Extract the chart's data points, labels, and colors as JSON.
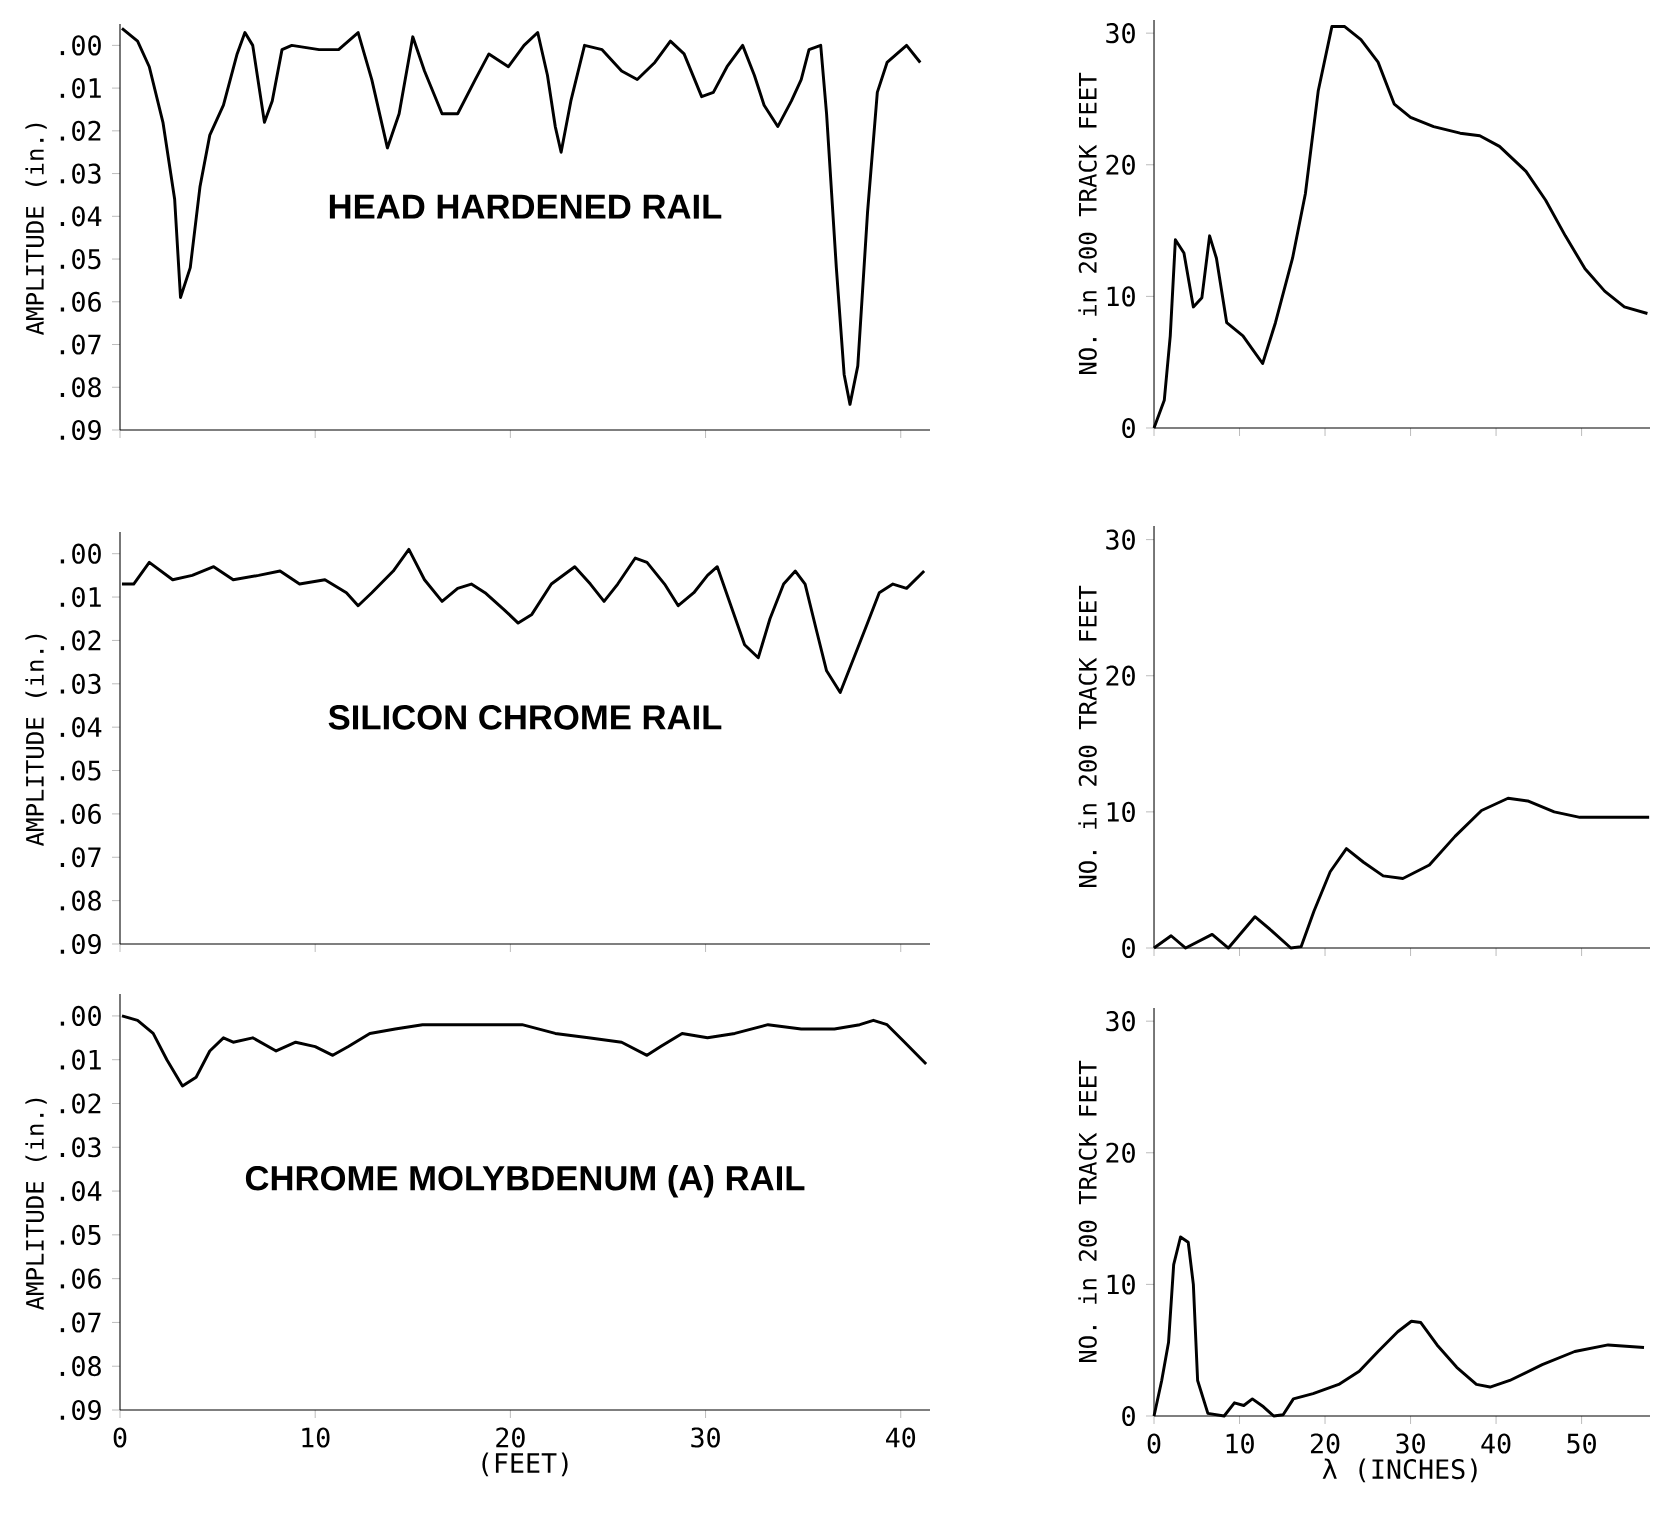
{
  "chart_data": [
    {
      "type": "line",
      "annotations": [
        "HEAD HARDENED RAIL"
      ],
      "ylabel": "AMPLITUDE (in.)",
      "color": "#000000",
      "tick_labels": "y",
      "xlim": [
        0,
        41.5
      ],
      "ylim": [
        0.09,
        -0.005
      ],
      "xticks": [
        {
          "value": 0,
          "label": null
        },
        {
          "value": 10,
          "label": null
        },
        {
          "value": 20,
          "label": null
        },
        {
          "value": 30,
          "label": null
        },
        {
          "value": 40,
          "label": null
        }
      ],
      "yticks": [
        {
          "value": 0,
          "label": ".00"
        },
        {
          "value": 0.01,
          "label": ".01"
        },
        {
          "value": 0.02,
          "label": ".02"
        },
        {
          "value": 0.03,
          "label": ".03"
        },
        {
          "value": 0.04,
          "label": ".04"
        },
        {
          "value": 0.05,
          "label": ".05"
        },
        {
          "value": 0.06,
          "label": ".06"
        },
        {
          "value": 0.07,
          "label": ".07"
        },
        {
          "value": 0.08,
          "label": ".08"
        },
        {
          "value": 0.09,
          "label": ".09"
        }
      ],
      "x": [
        0.1,
        0.9,
        1.5,
        2.2,
        2.8,
        3.1,
        3.6,
        4.1,
        4.6,
        5.3,
        6.0,
        6.4,
        6.8,
        7.4,
        7.8,
        8.3,
        8.8,
        10.2,
        11.2,
        12.2,
        12.9,
        13.7,
        14.3,
        15.0,
        15.6,
        16.5,
        17.3,
        18.2,
        18.9,
        19.9,
        20.7,
        21.4,
        21.9,
        22.3,
        22.6,
        23.1,
        23.8,
        24.7,
        25.7,
        26.5,
        27.4,
        28.2,
        28.9,
        29.8,
        30.4,
        31.1,
        31.9,
        32.5,
        33.0,
        33.7,
        34.4,
        34.9,
        35.3,
        35.9,
        36.2,
        36.7,
        37.1,
        37.4,
        37.8,
        38.3,
        38.8,
        39.3,
        39.8,
        40.3,
        41.0
      ],
      "values": [
        -0.004,
        -0.001,
        0.005,
        0.018,
        0.036,
        0.059,
        0.052,
        0.033,
        0.021,
        0.014,
        0.002,
        -0.003,
        0.0,
        0.018,
        0.013,
        0.001,
        0.0,
        0.001,
        0.001,
        -0.003,
        0.008,
        0.024,
        0.016,
        -0.002,
        0.006,
        0.016,
        0.016,
        0.008,
        0.002,
        0.005,
        0.0,
        -0.003,
        0.007,
        0.019,
        0.025,
        0.013,
        0.0,
        0.001,
        0.006,
        0.008,
        0.004,
        -0.001,
        0.002,
        0.012,
        0.011,
        0.005,
        0.0,
        0.007,
        0.014,
        0.019,
        0.013,
        0.008,
        0.001,
        0.0,
        0.016,
        0.052,
        0.077,
        0.084,
        0.075,
        0.039,
        0.011,
        0.004,
        0.002,
        0.0,
        0.004
      ]
    },
    {
      "type": "line",
      "ylabel": "NO. in 200 TRACK FEET",
      "color": "#000000",
      "tick_labels": "y",
      "xlim": [
        0,
        58
      ],
      "ylim": [
        0,
        31
      ],
      "xticks": [
        {
          "value": 0,
          "label": null
        },
        {
          "value": 10,
          "label": null
        },
        {
          "value": 20,
          "label": null
        },
        {
          "value": 30,
          "label": null
        },
        {
          "value": 40,
          "label": null
        },
        {
          "value": 50,
          "label": null
        }
      ],
      "yticks": [
        0,
        10,
        20,
        30
      ],
      "x": [
        0,
        1.2,
        1.9,
        2.5,
        3.5,
        4.6,
        5.6,
        6.5,
        7.3,
        8.5,
        10.4,
        11.5,
        12.7,
        14.2,
        16.2,
        17.7,
        19.2,
        20.8,
        22.3,
        24.2,
        26.2,
        28.1,
        30.0,
        32.7,
        35.8,
        38.1,
        40.4,
        43.5,
        45.8,
        48.1,
        50.4,
        52.7,
        55.0,
        57.7
      ],
      "values": [
        0,
        2.1,
        7.0,
        14.3,
        13.3,
        9.2,
        9.9,
        14.6,
        12.9,
        8.0,
        7.0,
        6.0,
        4.9,
        8.0,
        12.9,
        17.8,
        25.6,
        30.5,
        30.5,
        29.5,
        27.8,
        24.6,
        23.6,
        22.9,
        22.4,
        22.2,
        21.4,
        19.5,
        17.3,
        14.6,
        12.1,
        10.4,
        9.2,
        8.7
      ]
    },
    {
      "type": "line",
      "annotations": [
        "SILICON CHROME RAIL"
      ],
      "ylabel": "AMPLITUDE (in.)",
      "color": "#000000",
      "tick_labels": "y",
      "xlim": [
        0,
        41.5
      ],
      "ylim": [
        0.09,
        -0.005
      ],
      "xticks": [
        {
          "value": 0,
          "label": null
        },
        {
          "value": 10,
          "label": null
        },
        {
          "value": 20,
          "label": null
        },
        {
          "value": 30,
          "label": null
        },
        {
          "value": 40,
          "label": null
        }
      ],
      "yticks": [
        {
          "value": 0,
          "label": ".00"
        },
        {
          "value": 0.01,
          "label": ".01"
        },
        {
          "value": 0.02,
          "label": ".02"
        },
        {
          "value": 0.03,
          "label": ".03"
        },
        {
          "value": 0.04,
          "label": ".04"
        },
        {
          "value": 0.05,
          "label": ".05"
        },
        {
          "value": 0.06,
          "label": ".06"
        },
        {
          "value": 0.07,
          "label": ".07"
        },
        {
          "value": 0.08,
          "label": ".08"
        },
        {
          "value": 0.09,
          "label": ".09"
        }
      ],
      "x": [
        0.1,
        0.7,
        1.5,
        2.7,
        3.7,
        4.8,
        5.8,
        7.1,
        8.2,
        9.2,
        10.5,
        11.6,
        12.2,
        12.9,
        14.0,
        14.8,
        15.6,
        16.5,
        17.3,
        18.0,
        18.7,
        19.7,
        20.4,
        21.1,
        22.1,
        23.3,
        24.1,
        24.8,
        25.5,
        26.4,
        27.0,
        27.9,
        28.6,
        29.4,
        30.1,
        30.6,
        31.3,
        32.0,
        32.7,
        33.3,
        34.0,
        34.6,
        35.1,
        35.7,
        36.2,
        36.9,
        37.6,
        38.3,
        38.9,
        39.6,
        40.3,
        41.2
      ],
      "values": [
        0.007,
        0.007,
        0.002,
        0.006,
        0.005,
        0.003,
        0.006,
        0.005,
        0.004,
        0.007,
        0.006,
        0.009,
        0.012,
        0.009,
        0.004,
        -0.001,
        0.006,
        0.011,
        0.008,
        0.007,
        0.009,
        0.013,
        0.016,
        0.014,
        0.007,
        0.003,
        0.007,
        0.011,
        0.007,
        0.001,
        0.002,
        0.007,
        0.012,
        0.009,
        0.005,
        0.003,
        0.012,
        0.021,
        0.024,
        0.015,
        0.007,
        0.004,
        0.007,
        0.018,
        0.027,
        0.032,
        0.024,
        0.016,
        0.009,
        0.007,
        0.008,
        0.004
      ]
    },
    {
      "type": "line",
      "ylabel": "NO. in 200 TRACK FEET",
      "color": "#000000",
      "tick_labels": "y",
      "xlim": [
        0,
        58
      ],
      "ylim": [
        0,
        31
      ],
      "xticks": [
        {
          "value": 0,
          "label": null
        },
        {
          "value": 10,
          "label": null
        },
        {
          "value": 20,
          "label": null
        },
        {
          "value": 30,
          "label": null
        },
        {
          "value": 40,
          "label": null
        },
        {
          "value": 50,
          "label": null
        }
      ],
      "yticks": [
        0,
        10,
        20,
        30
      ],
      "x": [
        0,
        2.0,
        3.7,
        6.8,
        8.7,
        11.8,
        13.7,
        16.0,
        17.2,
        18.7,
        20.6,
        22.5,
        24.5,
        26.8,
        29.1,
        32.2,
        35.2,
        38.3,
        41.4,
        43.7,
        46.8,
        49.8,
        53.7,
        57.9
      ],
      "values": [
        0,
        0.9,
        0,
        1.0,
        0,
        2.3,
        1.3,
        0,
        0.1,
        2.7,
        5.6,
        7.3,
        6.3,
        5.3,
        5.1,
        6.1,
        8.2,
        10.1,
        11.0,
        10.8,
        10.0,
        9.6,
        9.6,
        9.6
      ]
    },
    {
      "type": "line",
      "annotations": [
        "CHROME MOLYBDENUM (A) RAIL"
      ],
      "ylabel": "AMPLITUDE (in.)",
      "xlabel": "(FEET)",
      "color": "#000000",
      "xlim": [
        0,
        41.5
      ],
      "ylim": [
        0.09,
        -0.005
      ],
      "xticks": [
        0,
        10,
        20,
        30,
        40
      ],
      "yticks": [
        {
          "value": 0,
          "label": ".00"
        },
        {
          "value": 0.01,
          "label": ".01"
        },
        {
          "value": 0.02,
          "label": ".02"
        },
        {
          "value": 0.03,
          "label": ".03"
        },
        {
          "value": 0.04,
          "label": ".04"
        },
        {
          "value": 0.05,
          "label": ".05"
        },
        {
          "value": 0.06,
          "label": ".06"
        },
        {
          "value": 0.07,
          "label": ".07"
        },
        {
          "value": 0.08,
          "label": ".08"
        },
        {
          "value": 0.09,
          "label": ".09"
        }
      ],
      "x": [
        0.1,
        0.9,
        1.7,
        2.4,
        3.2,
        3.9,
        4.6,
        5.3,
        5.8,
        6.8,
        8.0,
        9.0,
        10.0,
        10.9,
        11.7,
        12.8,
        14.1,
        15.5,
        17.2,
        18.9,
        20.6,
        22.3,
        24.0,
        25.7,
        27.0,
        27.7,
        28.8,
        30.1,
        31.5,
        33.2,
        34.9,
        36.6,
        37.9,
        38.6,
        39.3,
        40.2,
        41.3
      ],
      "values": [
        0.0,
        0.001,
        0.004,
        0.01,
        0.016,
        0.014,
        0.008,
        0.005,
        0.006,
        0.005,
        0.008,
        0.006,
        0.007,
        0.009,
        0.007,
        0.004,
        0.003,
        0.002,
        0.002,
        0.002,
        0.002,
        0.004,
        0.005,
        0.006,
        0.009,
        0.007,
        0.004,
        0.005,
        0.004,
        0.002,
        0.003,
        0.003,
        0.002,
        0.001,
        0.002,
        0.006,
        0.011
      ]
    },
    {
      "type": "line",
      "ylabel": "NO. in 200 TRACK FEET",
      "xlabel": "λ (INCHES)",
      "color": "#000000",
      "xlim": [
        0,
        58
      ],
      "ylim": [
        0,
        31
      ],
      "xticks": [
        0,
        10,
        20,
        30,
        40,
        50
      ],
      "yticks": [
        0,
        10,
        20,
        30
      ],
      "x": [
        0,
        0.9,
        1.7,
        2.3,
        3.1,
        4.0,
        4.6,
        5.1,
        6.3,
        8.2,
        9.4,
        10.5,
        11.5,
        12.8,
        14.0,
        15.1,
        16.3,
        18.6,
        21.6,
        24.0,
        26.2,
        28.5,
        30.1,
        31.2,
        33.1,
        35.4,
        37.7,
        39.3,
        41.6,
        45.4,
        49.2,
        53.1,
        57.3
      ],
      "values": [
        0,
        2.7,
        5.6,
        11.5,
        13.6,
        13.2,
        10.0,
        2.7,
        0.2,
        0,
        1.0,
        0.8,
        1.3,
        0.7,
        0,
        0.1,
        1.3,
        1.7,
        2.4,
        3.4,
        4.9,
        6.4,
        7.2,
        7.1,
        5.4,
        3.7,
        2.4,
        2.2,
        2.7,
        3.9,
        4.9,
        5.4,
        5.2
      ]
    }
  ]
}
